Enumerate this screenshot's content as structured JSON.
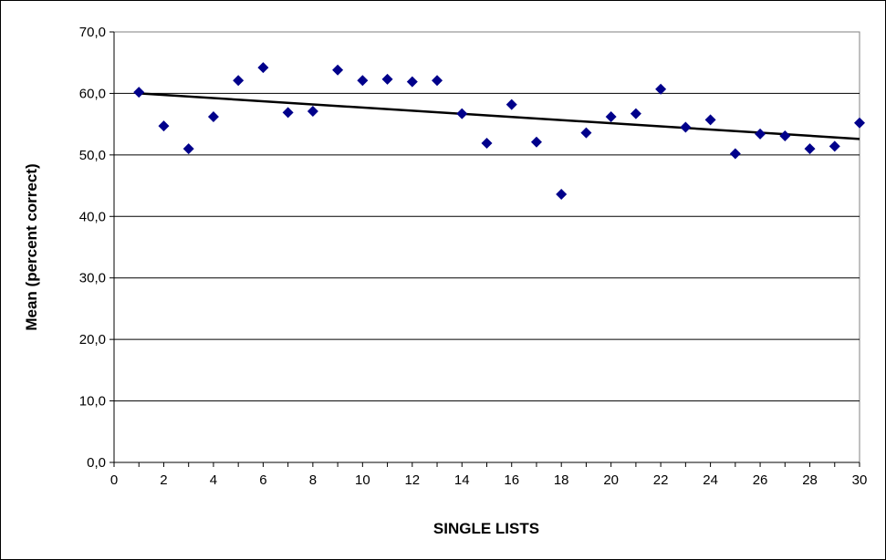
{
  "chart_data": {
    "type": "scatter",
    "title": "",
    "xlabel": "SINGLE LISTS",
    "ylabel": "Mean (percent correct)",
    "xlim": [
      0,
      30
    ],
    "ylim": [
      0,
      70
    ],
    "x_ticks": [
      "0",
      "2",
      "4",
      "6",
      "8",
      "10",
      "12",
      "14",
      "16",
      "18",
      "20",
      "22",
      "24",
      "26",
      "28",
      "30"
    ],
    "y_ticks": [
      "0,0",
      "10,0",
      "20,0",
      "30,0",
      "40,0",
      "50,0",
      "60,0",
      "70,0"
    ],
    "grid": "horizontal",
    "marker_color": "#00008B",
    "trendline_color": "#000000",
    "series": [
      {
        "x": [
          1,
          2,
          3,
          4,
          5,
          6,
          7,
          8,
          9,
          10,
          11,
          12,
          13,
          14,
          15,
          16,
          17,
          18,
          19,
          20,
          21,
          22,
          23,
          24,
          25,
          26,
          27,
          28,
          29,
          30
        ],
        "y": [
          60.2,
          54.7,
          51.0,
          56.2,
          62.1,
          64.2,
          56.9,
          57.1,
          63.8,
          62.1,
          62.3,
          61.9,
          62.1,
          56.7,
          51.9,
          58.2,
          52.1,
          43.6,
          53.6,
          56.2,
          56.7,
          60.7,
          54.5,
          55.7,
          50.2,
          53.4,
          53.1,
          51.0,
          51.4,
          55.2
        ]
      }
    ],
    "trendline": {
      "x": [
        1,
        30
      ],
      "y": [
        60.0,
        52.6
      ]
    }
  }
}
